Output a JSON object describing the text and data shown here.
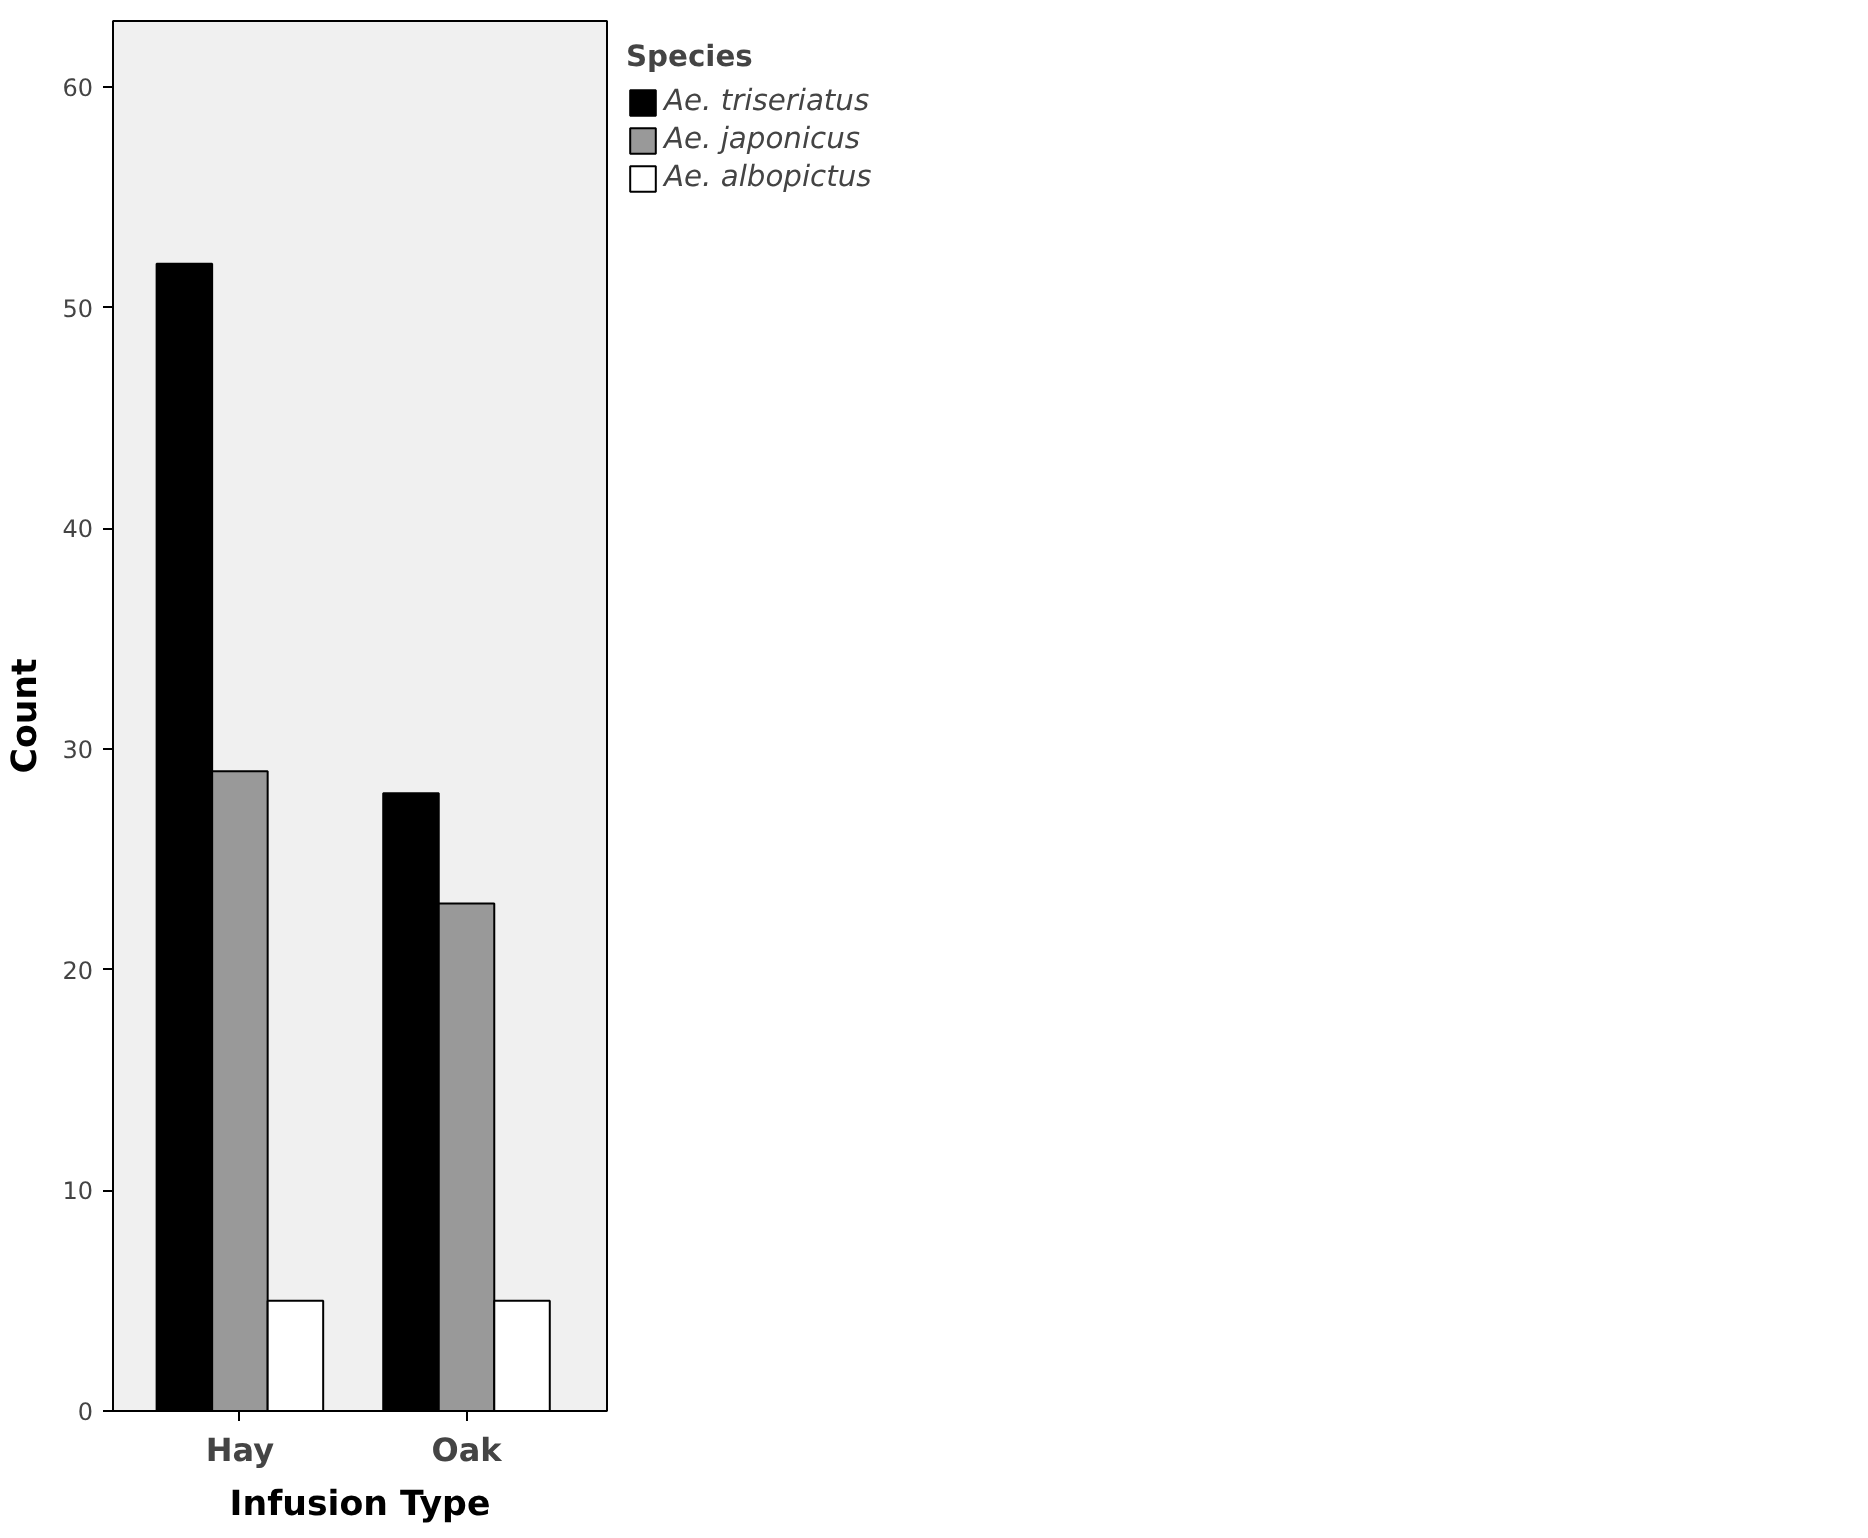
{
  "chart_data": {
    "type": "bar",
    "xlabel": "Infusion Type",
    "ylabel": "Count",
    "legend_title": "Species",
    "categories": [
      "Hay",
      "Oak"
    ],
    "series": [
      {
        "name": "Ae. triseriatus",
        "color": "#000000",
        "values": [
          52,
          28
        ]
      },
      {
        "name": "Ae. japonicus",
        "color": "#999999",
        "values": [
          29,
          23
        ]
      },
      {
        "name": "Ae. albopictus",
        "color": "#ffffff",
        "values": [
          5,
          5
        ]
      }
    ],
    "ylim": [
      0,
      63
    ],
    "yticks": [
      0,
      10,
      20,
      30,
      40,
      50,
      60
    ],
    "grid": false,
    "legend": "top right"
  }
}
